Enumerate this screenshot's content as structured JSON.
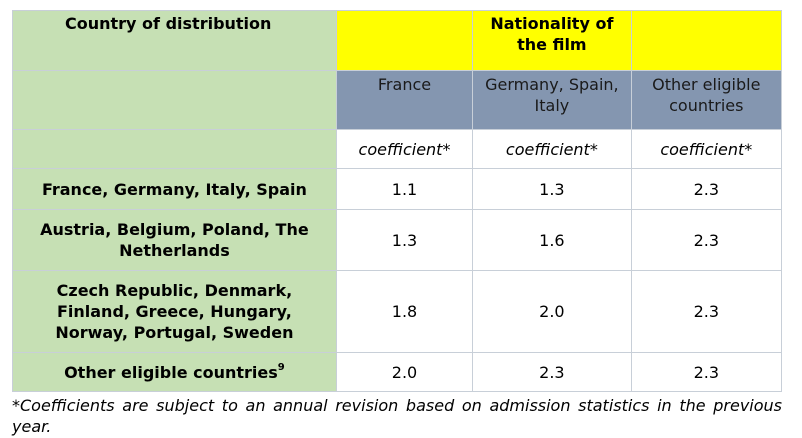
{
  "header": {
    "country_label": "Country of distribution",
    "nationality_label": "Nationality of the film"
  },
  "columns": [
    "France",
    "Germany, Spain, Italy",
    "Other eligible countries"
  ],
  "coefficient_label": "coefficient*",
  "rows": [
    {
      "country": "France, Germany, Italy, Spain",
      "values": [
        "1.1",
        "1.3",
        "2.3"
      ]
    },
    {
      "country": "Austria, Belgium, Poland, The Netherlands",
      "values": [
        "1.3",
        "1.6",
        "2.3"
      ]
    },
    {
      "country": "Czech Republic, Denmark, Finland, Greece, Hungary, Norway, Portugal, Sweden",
      "values": [
        "1.8",
        "2.0",
        "2.3"
      ]
    },
    {
      "country": "Other eligible countries",
      "footnote_mark": "9",
      "values": [
        "2.0",
        "2.3",
        "2.3"
      ]
    }
  ],
  "footnote": "*Coefficients are subject to an annual revision based on admission statistics in the previous year.",
  "colors": {
    "green": "#c6e0b4",
    "yellow": "#ffff00",
    "slate": "#8496b0"
  }
}
